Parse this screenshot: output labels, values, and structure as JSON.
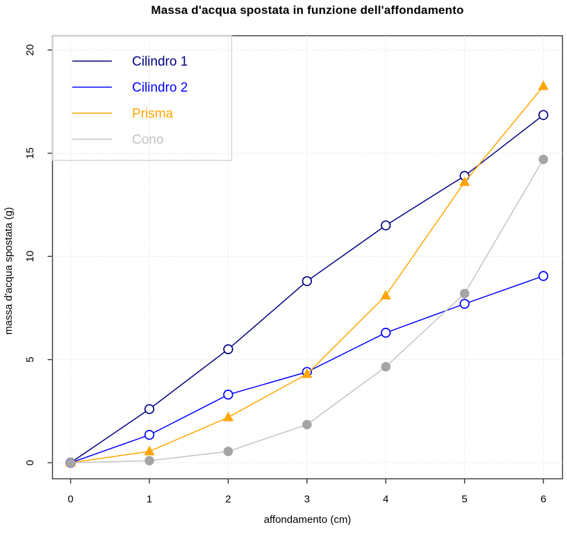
{
  "chart_data": {
    "type": "line",
    "title": "Massa d'acqua spostata in funzione dell'affondamento",
    "xlabel": "affondamento (cm)",
    "ylabel": "massa d'acqua spostata (g)",
    "x": [
      0,
      1,
      2,
      3,
      4,
      5,
      6
    ],
    "x_tick_labels": [
      "0",
      "1",
      "2",
      "3",
      "4",
      "5",
      "6"
    ],
    "y_ticks": [
      0,
      5,
      10,
      15,
      20
    ],
    "y_tick_labels": [
      "0",
      "5",
      "10",
      "15",
      "20"
    ],
    "xlim": [
      0,
      6
    ],
    "ylim": [
      0,
      20
    ],
    "grid": true,
    "grid_style": "dotted",
    "legend_position": "topleft",
    "series": [
      {
        "name": "Cilindro 1",
        "color": "#000080",
        "marker": "open-circle",
        "values": [
          0,
          2.6,
          5.5,
          8.8,
          11.5,
          13.9,
          16.85
        ]
      },
      {
        "name": "Cilindro 2",
        "color": "#0000ff",
        "marker": "open-circle",
        "values": [
          0,
          1.35,
          3.3,
          4.4,
          6.3,
          7.7,
          9.05
        ]
      },
      {
        "name": "Prisma",
        "color": "#ffa500",
        "marker": "filled-triangle",
        "values": [
          0,
          0.55,
          2.2,
          4.3,
          8.1,
          13.6,
          18.25
        ]
      },
      {
        "name": "Cono",
        "color": "#c3c3c3",
        "marker_color": "#a5a5a5",
        "marker": "filled-circle",
        "values": [
          0,
          0.1,
          0.55,
          1.85,
          4.65,
          8.2,
          14.7
        ]
      }
    ]
  },
  "style_colors": {
    "plot_border": "#333333",
    "grid": "#dedede",
    "tick_text": "#000000",
    "legend_border": "#cfcfcf"
  }
}
